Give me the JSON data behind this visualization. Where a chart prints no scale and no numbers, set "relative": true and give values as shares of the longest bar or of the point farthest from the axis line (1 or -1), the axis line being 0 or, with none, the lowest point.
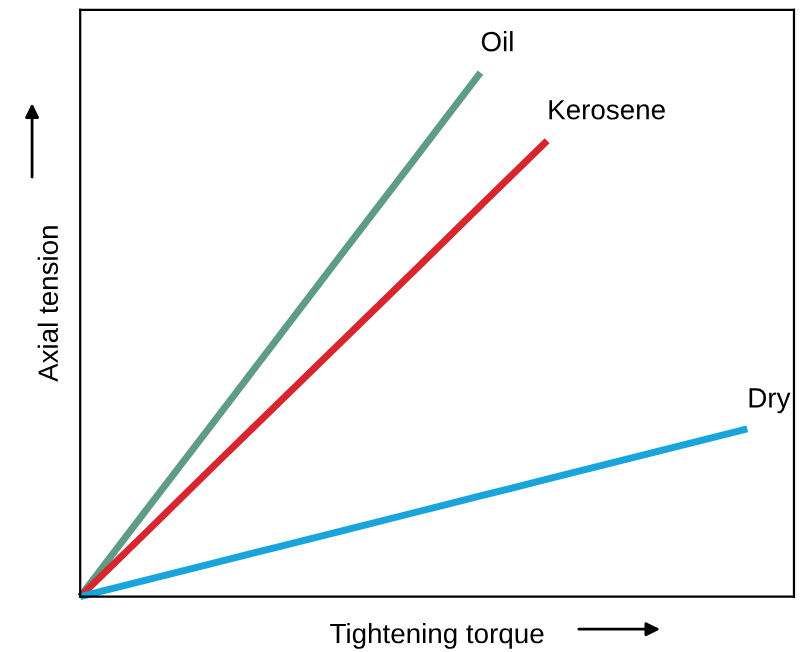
{
  "chart_data": {
    "type": "line",
    "relative": true,
    "xlabel": "Tightening torque",
    "ylabel": "Axial tension",
    "marker": "none",
    "line_style": "solid",
    "categories": [
      null,
      null,
      null,
      null,
      null,
      null,
      null,
      null,
      null,
      null,
      null
    ],
    "series": [
      {
        "name": "Oil",
        "color": "#5e9c86",
        "values": [
          0,
          0.167,
          0.333,
          0.5,
          0.667,
          0.833,
          1,
          null,
          null,
          null,
          null
        ]
      },
      {
        "name": "Kerosene",
        "color": "#d8262e",
        "values": [
          0,
          0.124,
          0.249,
          0.373,
          0.497,
          0.621,
          0.746,
          0.87,
          null,
          null,
          null
        ]
      },
      {
        "name": "Dry",
        "color": "#19a4dc",
        "values": [
          0,
          0.032,
          0.064,
          0.096,
          0.128,
          0.16,
          0.192,
          0.224,
          0.256,
          0.288,
          0.32
        ]
      }
    ]
  }
}
